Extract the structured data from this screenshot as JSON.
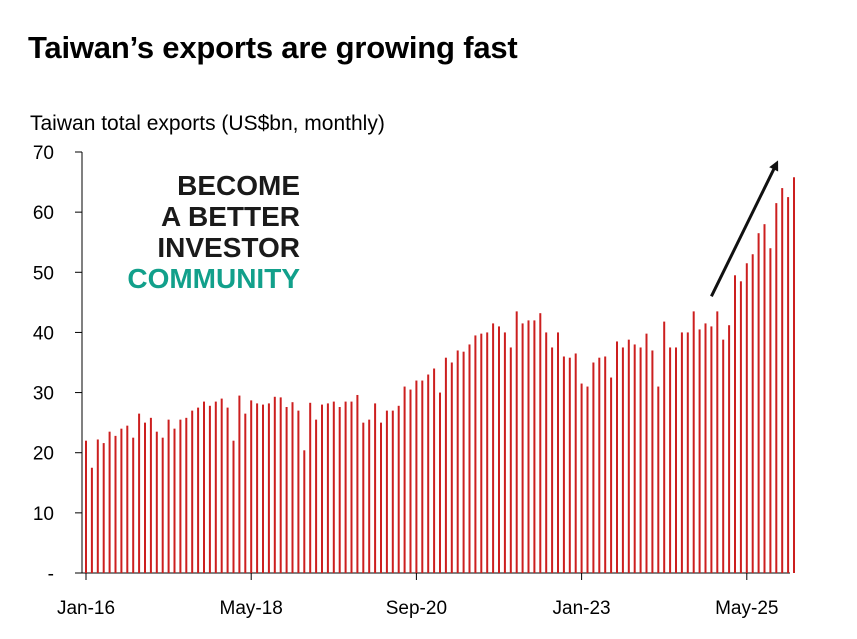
{
  "title": "Taiwan’s exports are growing fast",
  "watermark": {
    "lines": [
      "BECOME",
      "A BETTER",
      "INVESTOR"
    ],
    "accent_line": "COMMUNITY",
    "accent_color": "#12a08b"
  },
  "chart_data": {
    "type": "bar",
    "subtitle": "Taiwan total exports (US$bn, monthly)",
    "xlabel": "",
    "ylabel": "",
    "ylim": [
      0,
      70
    ],
    "y_ticks": [
      {
        "value": 0,
        "label": "-"
      },
      {
        "value": 10,
        "label": "10"
      },
      {
        "value": 20,
        "label": "20"
      },
      {
        "value": 30,
        "label": "30"
      },
      {
        "value": 40,
        "label": "40"
      },
      {
        "value": 50,
        "label": "50"
      },
      {
        "value": 60,
        "label": "60"
      },
      {
        "value": 70,
        "label": "70"
      }
    ],
    "x_ticks": [
      {
        "index": 0,
        "label": "Jan-16"
      },
      {
        "index": 28,
        "label": "May-18"
      },
      {
        "index": 56,
        "label": "Sep-20"
      },
      {
        "index": 84,
        "label": "Jan-23"
      },
      {
        "index": 112,
        "label": "May-25"
      }
    ],
    "start_month": "Jan-16",
    "bar_color": "#cc1f1f",
    "trend_arrow": {
      "from_index": 106,
      "from_value": 46,
      "to_index": 117,
      "to_value": 68
    },
    "values": [
      22.0,
      17.5,
      22.2,
      21.6,
      23.5,
      22.8,
      24.0,
      24.5,
      22.5,
      26.5,
      25.0,
      25.8,
      23.5,
      22.5,
      25.5,
      24.0,
      25.5,
      25.8,
      27.0,
      27.5,
      28.5,
      27.8,
      28.5,
      29.0,
      27.5,
      22.0,
      29.5,
      26.5,
      28.7,
      28.2,
      28.0,
      28.2,
      29.3,
      29.2,
      27.6,
      28.4,
      27.0,
      20.4,
      28.3,
      25.5,
      28.0,
      28.2,
      28.5,
      27.6,
      28.5,
      28.5,
      29.6,
      25.0,
      25.5,
      28.2,
      25.0,
      27.0,
      27.0,
      27.8,
      31.0,
      30.5,
      32.0,
      32.0,
      33.0,
      34.0,
      30.0,
      35.8,
      35.0,
      37.0,
      36.8,
      38.0,
      39.5,
      39.8,
      40.0,
      41.5,
      41.0,
      40.0,
      37.5,
      43.5,
      41.5,
      42.0,
      42.0,
      43.2,
      40.0,
      37.5,
      40.0,
      36.0,
      35.8,
      36.5,
      31.5,
      31.0,
      35.0,
      35.8,
      36.0,
      32.5,
      38.5,
      37.5,
      38.8,
      38.0,
      37.5,
      39.8,
      37.0,
      31.0,
      41.8,
      37.5,
      37.5,
      40.0,
      40.0,
      43.5,
      40.5,
      41.5,
      41.0,
      43.5,
      38.8,
      41.2,
      49.5,
      48.5,
      51.5,
      53.0,
      56.5,
      58.0,
      54.0,
      61.5,
      64.0,
      62.5,
      65.8
    ]
  }
}
